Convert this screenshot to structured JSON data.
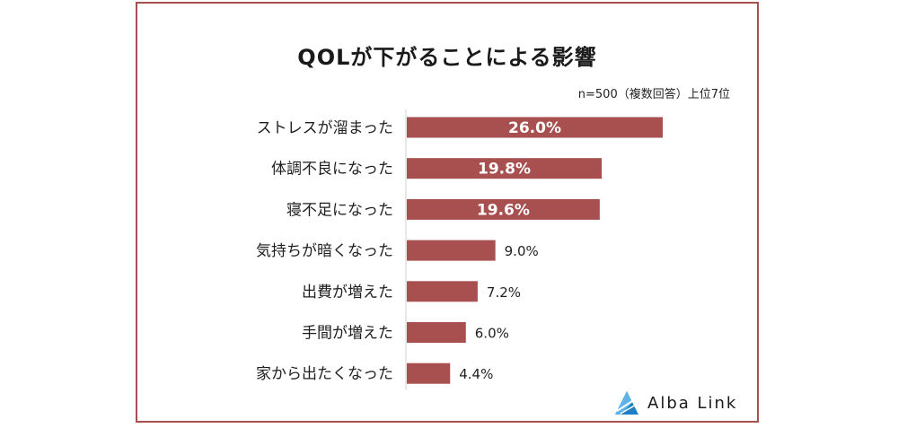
{
  "chart_data": {
    "type": "bar",
    "orientation": "horizontal",
    "title": "QOLが下がることによる影響",
    "note": "n=500（複数回答）上位7位",
    "categories": [
      "ストレスが溜まった",
      "体調不良になった",
      "寝不足になった",
      "気持ちが暗くなった",
      "出費が増えた",
      "手間が増えた",
      "家から出たくなった"
    ],
    "values": [
      26.0,
      19.8,
      19.6,
      9.0,
      7.2,
      6.0,
      4.4
    ],
    "value_labels": [
      "26.0%",
      "19.8%",
      "19.6%",
      "9.0%",
      "7.2%",
      "6.0%",
      "4.4%"
    ],
    "xlim": [
      0,
      30
    ],
    "bar_color": "#a84f4f",
    "grid": false,
    "legend": "none"
  },
  "brand": {
    "name": "Alba Link",
    "accent": "#1f7fc4"
  },
  "colors": {
    "frame": "#a84f4f"
  }
}
